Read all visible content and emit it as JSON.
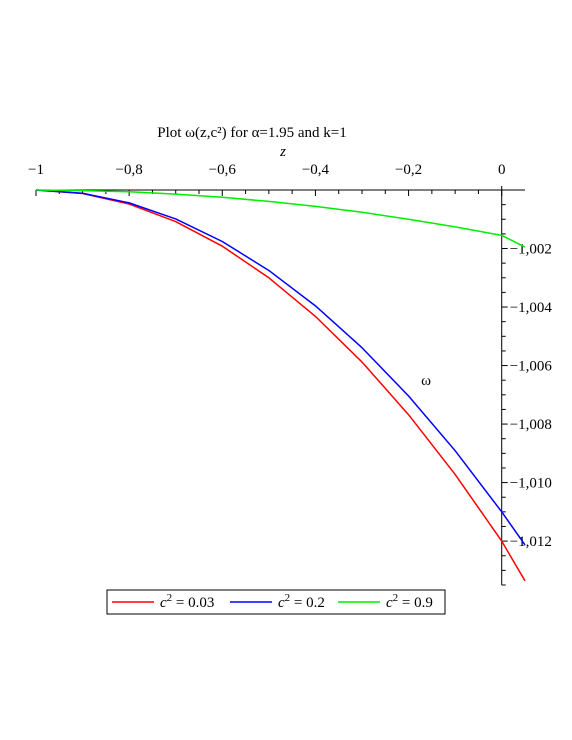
{
  "chart_data": {
    "type": "line",
    "title": "Plot ω(z,c²) for α=1.95 and k=1",
    "xlabel": "z",
    "ylabel": "ω",
    "xlim": [
      -1,
      0.05
    ],
    "ylim": [
      -1.0135,
      -1.0
    ],
    "x_ticks": [
      -1,
      -0.8,
      -0.6,
      -0.4,
      -0.2,
      0
    ],
    "x_tick_labels": [
      "−1",
      "−0,8",
      "−0,6",
      "−0,4",
      "−0,2",
      "0"
    ],
    "y_ticks": [
      -1.002,
      -1.004,
      -1.006,
      -1.008,
      -1.01,
      -1.012
    ],
    "y_tick_labels": [
      "−1,002",
      "−1,004",
      "−1,006",
      "−1,008",
      "−1,010",
      "−1,012"
    ],
    "grid": false,
    "legend_position": "bottom",
    "series": [
      {
        "name": "c² = 0.03",
        "legend_base": "c",
        "legend_exp": "2",
        "legend_value": "= 0.03",
        "color": "#ff0000",
        "x": [
          -1,
          -0.9,
          -0.8,
          -0.7,
          -0.6,
          -0.5,
          -0.4,
          -0.3,
          -0.2,
          -0.1,
          0,
          0.05
        ],
        "y": [
          -1.0,
          -1.00012,
          -1.00048,
          -1.00108,
          -1.00192,
          -1.003,
          -1.00432,
          -1.00588,
          -1.00768,
          -1.00972,
          -1.012,
          -1.01336
        ]
      },
      {
        "name": "c² = 0.2",
        "legend_base": "c",
        "legend_exp": "2",
        "legend_value": "= 0.2",
        "color": "#0000ff",
        "x": [
          -1,
          -0.9,
          -0.8,
          -0.7,
          -0.6,
          -0.5,
          -0.4,
          -0.3,
          -0.2,
          -0.1,
          0,
          0.05
        ],
        "y": [
          -1.0,
          -1.00011,
          -1.00044,
          -1.00099,
          -1.00176,
          -1.00275,
          -1.00396,
          -1.00539,
          -1.00704,
          -1.00891,
          -1.011,
          -1.01213
        ]
      },
      {
        "name": "c² = 0.9",
        "legend_base": "c",
        "legend_exp": "2",
        "legend_value": "= 0.9",
        "color": "#00ee00",
        "x": [
          -1,
          -0.9,
          -0.8,
          -0.7,
          -0.6,
          -0.5,
          -0.4,
          -0.3,
          -0.2,
          -0.1,
          0,
          0.05
        ],
        "y": [
          -1.0,
          -1.00002,
          -1.00006,
          -1.00014,
          -1.00025,
          -1.00039,
          -1.00056,
          -1.00076,
          -1.001,
          -1.00126,
          -1.00155,
          -1.00195
        ]
      }
    ]
  }
}
